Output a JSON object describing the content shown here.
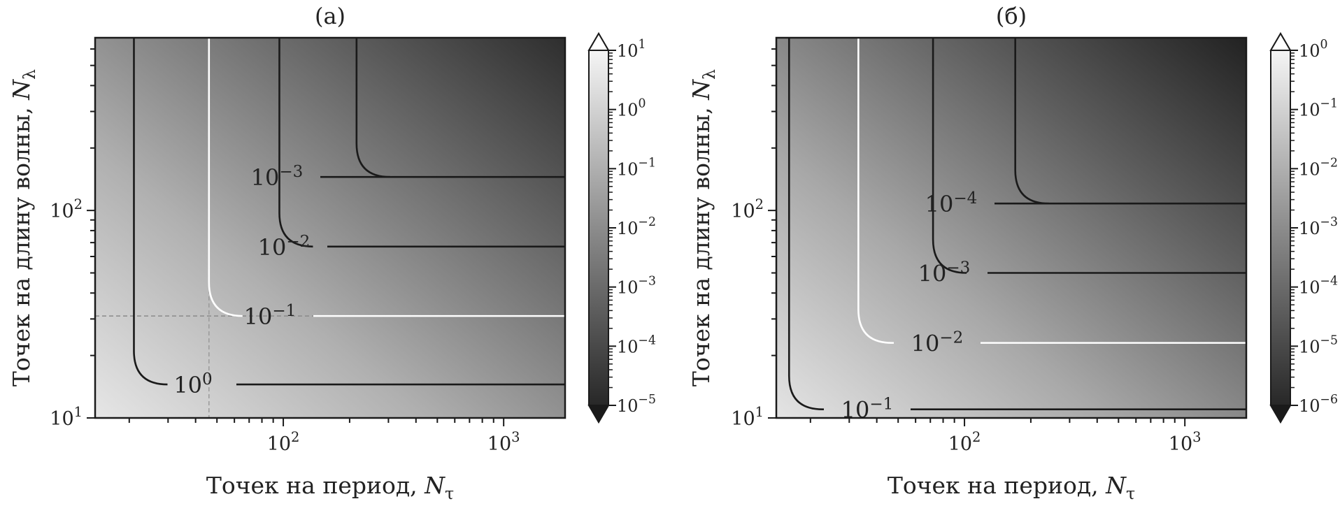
{
  "chart_data": [
    {
      "type": "heatmap",
      "panel_label": "(а)",
      "xlabel": "Точек на период, ",
      "xlabel_sym": "N",
      "xlabel_sub": "τ",
      "ylabel": "Точек на длину волны, ",
      "ylabel_sym": "N",
      "ylabel_sub": "λ",
      "x_scale": "log",
      "y_scale": "log",
      "xlim": [
        14,
        1900
      ],
      "ylim": [
        10,
        680
      ],
      "x_ticks": [
        {
          "value": 100,
          "label": "10",
          "exp": "2"
        },
        {
          "value": 1000,
          "label": "10",
          "exp": "3"
        }
      ],
      "y_ticks": [
        {
          "value": 10,
          "label": "10",
          "exp": "1"
        },
        {
          "value": 100,
          "label": "10",
          "exp": "2"
        }
      ],
      "colorbar": {
        "scale": "log",
        "range": [
          1e-05,
          10
        ],
        "extend": "both",
        "ticks": [
          {
            "value": 10,
            "label": "10",
            "exp": "1"
          },
          {
            "value": 1,
            "label": "10",
            "exp": "0"
          },
          {
            "value": 0.1,
            "label": "10",
            "exp": "−1"
          },
          {
            "value": 0.01,
            "label": "10",
            "exp": "−2"
          },
          {
            "value": 0.001,
            "label": "10",
            "exp": "−3"
          },
          {
            "value": 0.0001,
            "label": "10",
            "exp": "−4"
          },
          {
            "value": 1e-05,
            "label": "10",
            "exp": "−5"
          }
        ]
      },
      "contours": [
        {
          "level": 1,
          "label": "10",
          "exp": "0",
          "color": "#1a1a1a",
          "vx": 21,
          "hy": 14.5,
          "label_x": 140
        },
        {
          "level": 0.1,
          "label": "10",
          "exp": "−1",
          "color": "#ffffff",
          "vx": 46,
          "hy": 31,
          "label_x": 250
        },
        {
          "level": 0.01,
          "label": "10",
          "exp": "−2",
          "color": "#1a1a1a",
          "vx": 96,
          "hy": 67,
          "label_x": 270
        },
        {
          "level": 0.001,
          "label": "10",
          "exp": "−3",
          "color": "#1a1a1a",
          "vx": 215,
          "hy": 145,
          "label_x": 260
        }
      ],
      "reference_lines": {
        "x": 46,
        "y": 31,
        "style": "dashed"
      }
    },
    {
      "type": "heatmap",
      "panel_label": "(б)",
      "xlabel": "Точек на период, ",
      "xlabel_sym": "N",
      "xlabel_sub": "τ",
      "ylabel": "Точек на длину волны, ",
      "ylabel_sym": "N",
      "ylabel_sub": "λ",
      "x_scale": "log",
      "y_scale": "log",
      "xlim": [
        14,
        1900
      ],
      "ylim": [
        10,
        680
      ],
      "x_ticks": [
        {
          "value": 100,
          "label": "10",
          "exp": "2"
        },
        {
          "value": 1000,
          "label": "10",
          "exp": "3"
        }
      ],
      "y_ticks": [
        {
          "value": 10,
          "label": "10",
          "exp": "1"
        },
        {
          "value": 100,
          "label": "10",
          "exp": "2"
        }
      ],
      "colorbar": {
        "scale": "log",
        "range": [
          1e-06,
          1
        ],
        "extend": "both",
        "ticks": [
          {
            "value": 1,
            "label": "10",
            "exp": "0"
          },
          {
            "value": 0.1,
            "label": "10",
            "exp": "−1"
          },
          {
            "value": 0.01,
            "label": "10",
            "exp": "−2"
          },
          {
            "value": 0.001,
            "label": "10",
            "exp": "−3"
          },
          {
            "value": 0.0001,
            "label": "10",
            "exp": "−4"
          },
          {
            "value": 1e-05,
            "label": "10",
            "exp": "−5"
          },
          {
            "value": 1e-06,
            "label": "10",
            "exp": "−6"
          }
        ]
      },
      "contours": [
        {
          "level": 0.1,
          "label": "10",
          "exp": "−1",
          "color": "#1a1a1a",
          "vx": 16,
          "hy": 11,
          "label_x": 130
        },
        {
          "level": 0.01,
          "label": "10",
          "exp": "−2",
          "color": "#ffffff",
          "vx": 33,
          "hy": 23,
          "label_x": 230
        },
        {
          "level": 0.001,
          "label": "10",
          "exp": "−3",
          "color": "#1a1a1a",
          "vx": 72,
          "hy": 50,
          "label_x": 240
        },
        {
          "level": 0.0001,
          "label": "10",
          "exp": "−4",
          "color": "#1a1a1a",
          "vx": 170,
          "hy": 108,
          "label_x": 250
        }
      ]
    }
  ]
}
